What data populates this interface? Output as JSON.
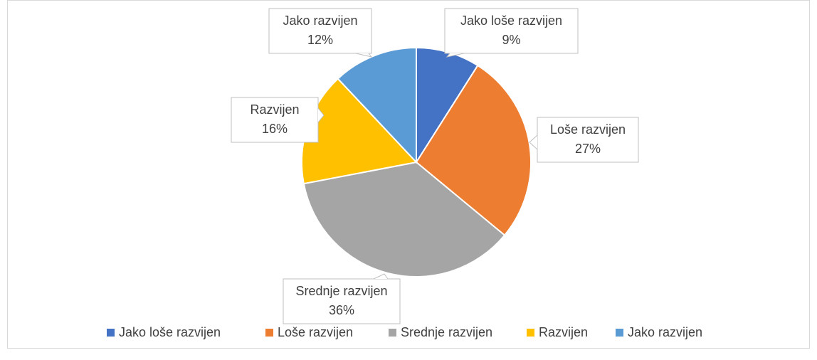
{
  "chart_data": {
    "type": "pie",
    "categories": [
      "Jako loše razvijen",
      "Loše razvijen",
      "Srednje razvijen",
      "Razvijen",
      "Jako razvijen"
    ],
    "values": [
      9,
      27,
      36,
      16,
      12
    ],
    "value_labels": [
      "9%",
      "27%",
      "36%",
      "16%",
      "12%"
    ],
    "colors": [
      "#4472c4",
      "#ed7d31",
      "#a5a5a5",
      "#ffc000",
      "#5b9bd5"
    ],
    "legend": "bottom"
  }
}
